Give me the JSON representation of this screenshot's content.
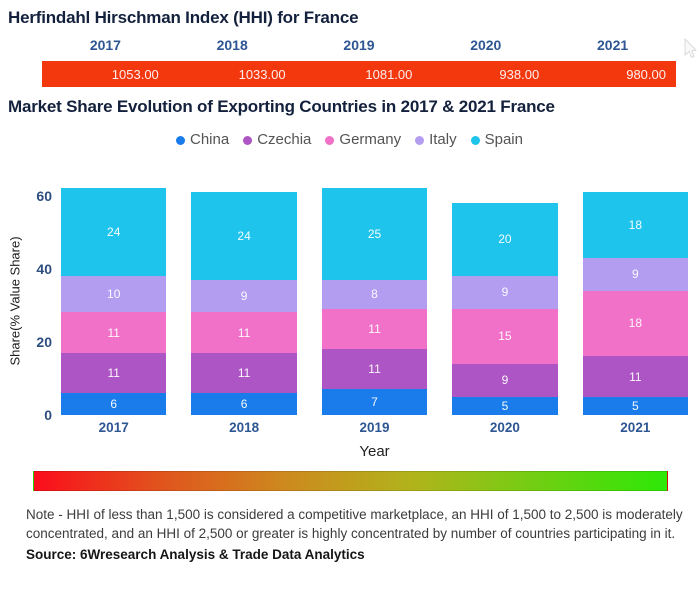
{
  "chart_data": [
    {
      "type": "table",
      "title": "Herfindahl Hirschman Index (HHI) for France",
      "columns": [
        "2017",
        "2018",
        "2019",
        "2020",
        "2021"
      ],
      "rows": [
        [
          "1053.00",
          "1033.00",
          "1081.00",
          "938.00",
          "980.00"
        ]
      ],
      "row_color": "#f4380d"
    },
    {
      "type": "bar",
      "stacked": true,
      "title": "Market Share Evolution of Exporting Countries in 2017 & 2021 France",
      "categories": [
        "2017",
        "2018",
        "2019",
        "2020",
        "2021"
      ],
      "series": [
        {
          "name": "China",
          "color": "#1a7ceb",
          "values": [
            6,
            6,
            7,
            5,
            5
          ]
        },
        {
          "name": "Czechia",
          "color": "#ae55c5",
          "values": [
            11,
            11,
            11,
            9,
            11
          ]
        },
        {
          "name": "Germany",
          "color": "#f170c8",
          "values": [
            11,
            11,
            11,
            15,
            18
          ]
        },
        {
          "name": "Italy",
          "color": "#b29df1",
          "values": [
            10,
            9,
            8,
            9,
            9
          ]
        },
        {
          "name": "Spain",
          "color": "#1ec4ec",
          "values": [
            24,
            24,
            25,
            20,
            18
          ]
        }
      ],
      "xlabel": "Year",
      "ylabel": "Share(% Value Share)",
      "yticks": [
        0,
        20,
        40,
        60
      ],
      "ylim": [
        0,
        62
      ],
      "legend_position": "top",
      "grid": false,
      "bar_value_labels": true
    }
  ],
  "footer": {
    "note": "Note - HHI of less than 1,500 is considered a competitive marketplace, an HHI of 1,500 to 2,500 is moderately concentrated, and an HHI of 2,500 or greater is highly concentrated by number of countries participating in it.",
    "source": "Source: 6Wresearch Analysis & Trade Data Analytics",
    "gradient_stops": [
      "#fb0d1c",
      "#e1541d",
      "#cd8a1e",
      "#b1b41b",
      "#6fcf12",
      "#2de807"
    ]
  }
}
